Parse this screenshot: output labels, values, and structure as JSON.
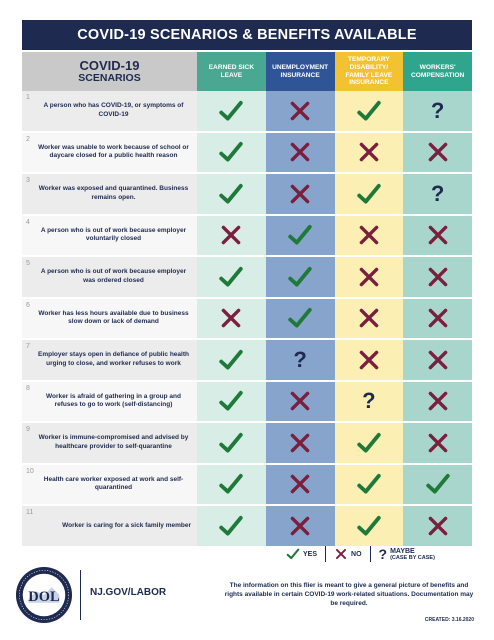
{
  "title": "COVID-19 SCENARIOS & BENEFITS AVAILABLE",
  "scenarios_header": {
    "line1": "COVID-19",
    "line2": "SCENARIOS"
  },
  "columns": [
    "EARNED SICK LEAVE",
    "UNEMPLOYMENT INSURANCE",
    "TEMPORARY DISABILITY/ FAMILY LEAVE INSURANCE",
    "WORKERS' COMPENSATION"
  ],
  "rows": [
    {
      "num": "1",
      "text": "A person who has COVID-19, or symptoms of COVID-19",
      "values": [
        "yes",
        "no",
        "yes",
        "maybe"
      ]
    },
    {
      "num": "2",
      "text": "Worker was unable to work because of school or daycare closed for a public health reason",
      "values": [
        "yes",
        "no",
        "no",
        "no"
      ]
    },
    {
      "num": "3",
      "text": "Worker was exposed and quarantined. Business remains open.",
      "values": [
        "yes",
        "no",
        "yes",
        "maybe"
      ]
    },
    {
      "num": "4",
      "text": "A person who is out of work because employer voluntarily closed",
      "values": [
        "no",
        "yes",
        "no",
        "no"
      ]
    },
    {
      "num": "5",
      "text": "A person who is out of work because employer was ordered closed",
      "values": [
        "yes",
        "yes",
        "no",
        "no"
      ]
    },
    {
      "num": "6",
      "text": "Worker has less hours available due to business slow down or lack of demand",
      "values": [
        "no",
        "yes",
        "no",
        "no"
      ]
    },
    {
      "num": "7",
      "text": "Employer stays open in defiance of public health urging to close, and worker refuses to work",
      "values": [
        "yes",
        "maybe",
        "no",
        "no"
      ]
    },
    {
      "num": "8",
      "text": "Worker is afraid of gathering in a group and refuses to go to work (self-distancing)",
      "values": [
        "yes",
        "no",
        "maybe",
        "no"
      ]
    },
    {
      "num": "9",
      "text": "Worker is immune-compromised and advised by healthcare provider to self-quarantine",
      "values": [
        "yes",
        "no",
        "yes",
        "no"
      ]
    },
    {
      "num": "10",
      "text": "Health care worker exposed at work and self-quarantined",
      "values": [
        "yes",
        "no",
        "yes",
        "yes"
      ]
    },
    {
      "num": "11",
      "text": "Worker is caring for a sick family member",
      "values": [
        "yes",
        "no",
        "yes",
        "no"
      ]
    }
  ],
  "legend": {
    "yes": "YES",
    "no": "NO",
    "maybe_symbol": "?",
    "maybe": "MAYBE",
    "maybe_note": "(CASE BY CASE)"
  },
  "footer": {
    "seal_text": "DOL",
    "site": "NJ.GOV/LABOR",
    "disclaimer": "The information on this flier is meant to give a general picture of benefits and rights available  in certain COVID-19 work-related situations. Documentation may be required.",
    "created": "CREATED: 3.16.2020"
  },
  "colors": {
    "navy": "#1e2a4f",
    "yes_green": "#1f7a3a",
    "no_maroon": "#7a1f3d",
    "col_sick": "#4aa892",
    "col_unemp": "#2f5597",
    "col_tdi": "#f3c233",
    "col_wc": "#2fa58e"
  }
}
